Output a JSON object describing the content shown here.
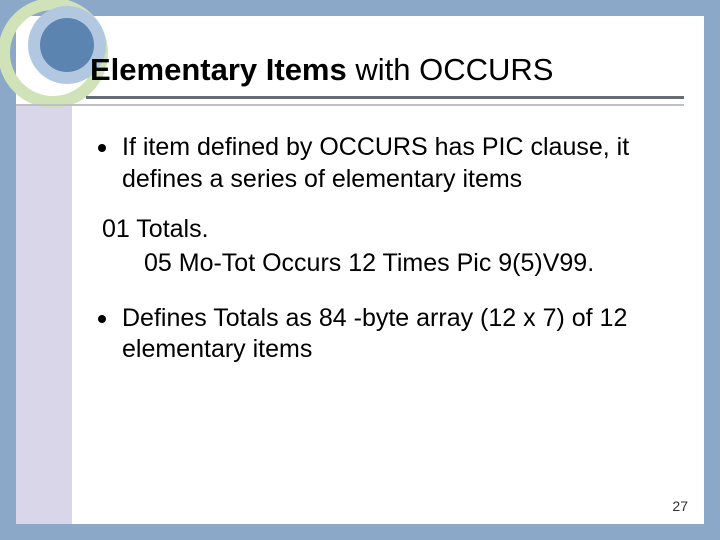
{
  "colors": {
    "slide_bg": "#ffffff",
    "outer_bg": "#8ba8c8",
    "left_band": "#d8d6e8",
    "ring_outer": "#cfe2b8",
    "ring_mid": "#b2c8e0",
    "ring_inner": "#5c84b0",
    "rule_dark": "#666b74",
    "rule_light": "#bfbfc8",
    "text": "#000000"
  },
  "title": {
    "bold_part": "Elementary Items",
    "rest": " with OCCURS",
    "fontsize": 31
  },
  "bullets": {
    "b1": "If item defined by OCCURS has PIC clause, it defines a series of elementary items",
    "b2": "Defines Totals as 84 -byte array (12 x 7) of 12 elementary items"
  },
  "code": {
    "line1": "01  Totals.",
    "line2": "05  Mo-Tot Occurs 12 Times Pic 9(5)V99."
  },
  "page_number": "27",
  "body_fontsize": 25
}
